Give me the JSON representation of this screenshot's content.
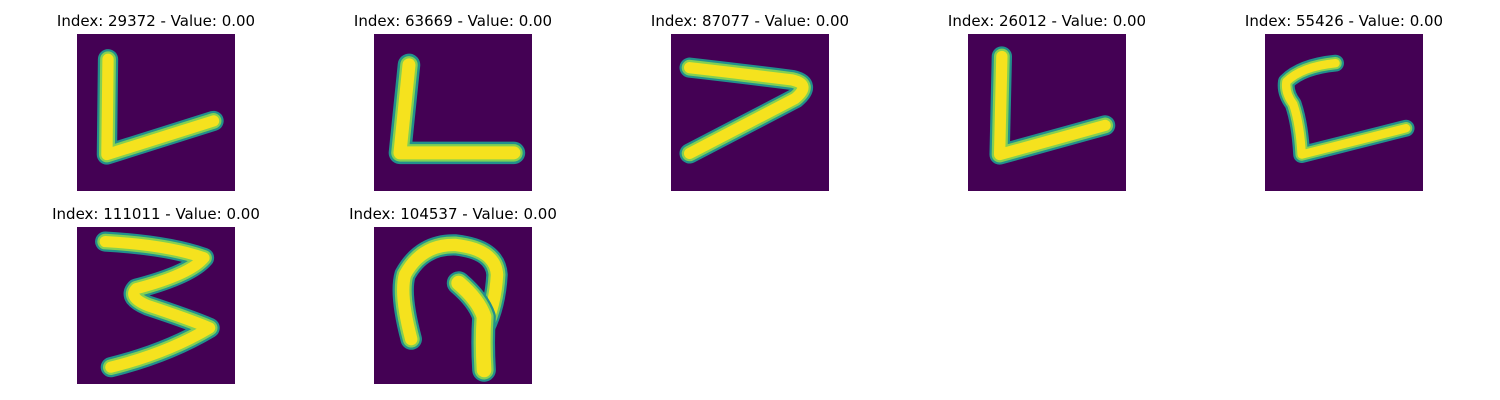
{
  "panels": [
    {
      "title": "Index: 29372 - Value: 0.00",
      "subject": "handwritten-L"
    },
    {
      "title": "Index: 63669 - Value: 0.00",
      "subject": "handwritten-L"
    },
    {
      "title": "Index: 87077 - Value: 0.00",
      "subject": "handwritten-7"
    },
    {
      "title": "Index: 26012 - Value: 0.00",
      "subject": "handwritten-L"
    },
    {
      "title": "Index: 55426 - Value: 0.00",
      "subject": "handwritten-C"
    },
    {
      "title": "Index: 111011 - Value: 0.00",
      "subject": "handwritten-3"
    },
    {
      "title": "Index: 104537 - Value: 0.00",
      "subject": "handwritten-a"
    }
  ],
  "colors": {
    "background": "#440154",
    "stroke_core": "#f5e21e",
    "stroke_mid": "#83d052",
    "stroke_edge": "#22908c"
  }
}
